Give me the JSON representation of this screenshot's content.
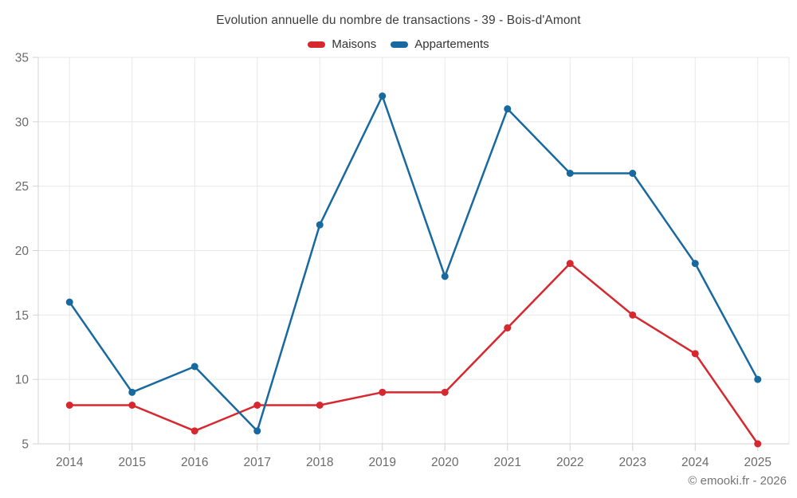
{
  "chart_data": {
    "type": "line",
    "title": "Evolution annuelle du nombre de transactions - 39 - Bois-d'Amont",
    "categories": [
      "2014",
      "2015",
      "2016",
      "2017",
      "2018",
      "2019",
      "2020",
      "2021",
      "2022",
      "2023",
      "2024",
      "2025"
    ],
    "series": [
      {
        "name": "Maisons",
        "color": "#d7282f",
        "values": [
          8,
          8,
          6,
          8,
          8,
          9,
          9,
          14,
          19,
          15,
          12,
          5
        ]
      },
      {
        "name": "Appartements",
        "color": "#17699f",
        "values": [
          16,
          9,
          11,
          6,
          22,
          32,
          18,
          31,
          26,
          26,
          19,
          10
        ]
      }
    ],
    "xlabel": "",
    "ylabel": "",
    "ylim": [
      5,
      35
    ],
    "yticks": [
      5,
      10,
      15,
      20,
      25,
      30,
      35
    ],
    "grid": true,
    "legend_position": "top"
  },
  "footer": {
    "copyright": "© emooki.fr - 2026"
  }
}
